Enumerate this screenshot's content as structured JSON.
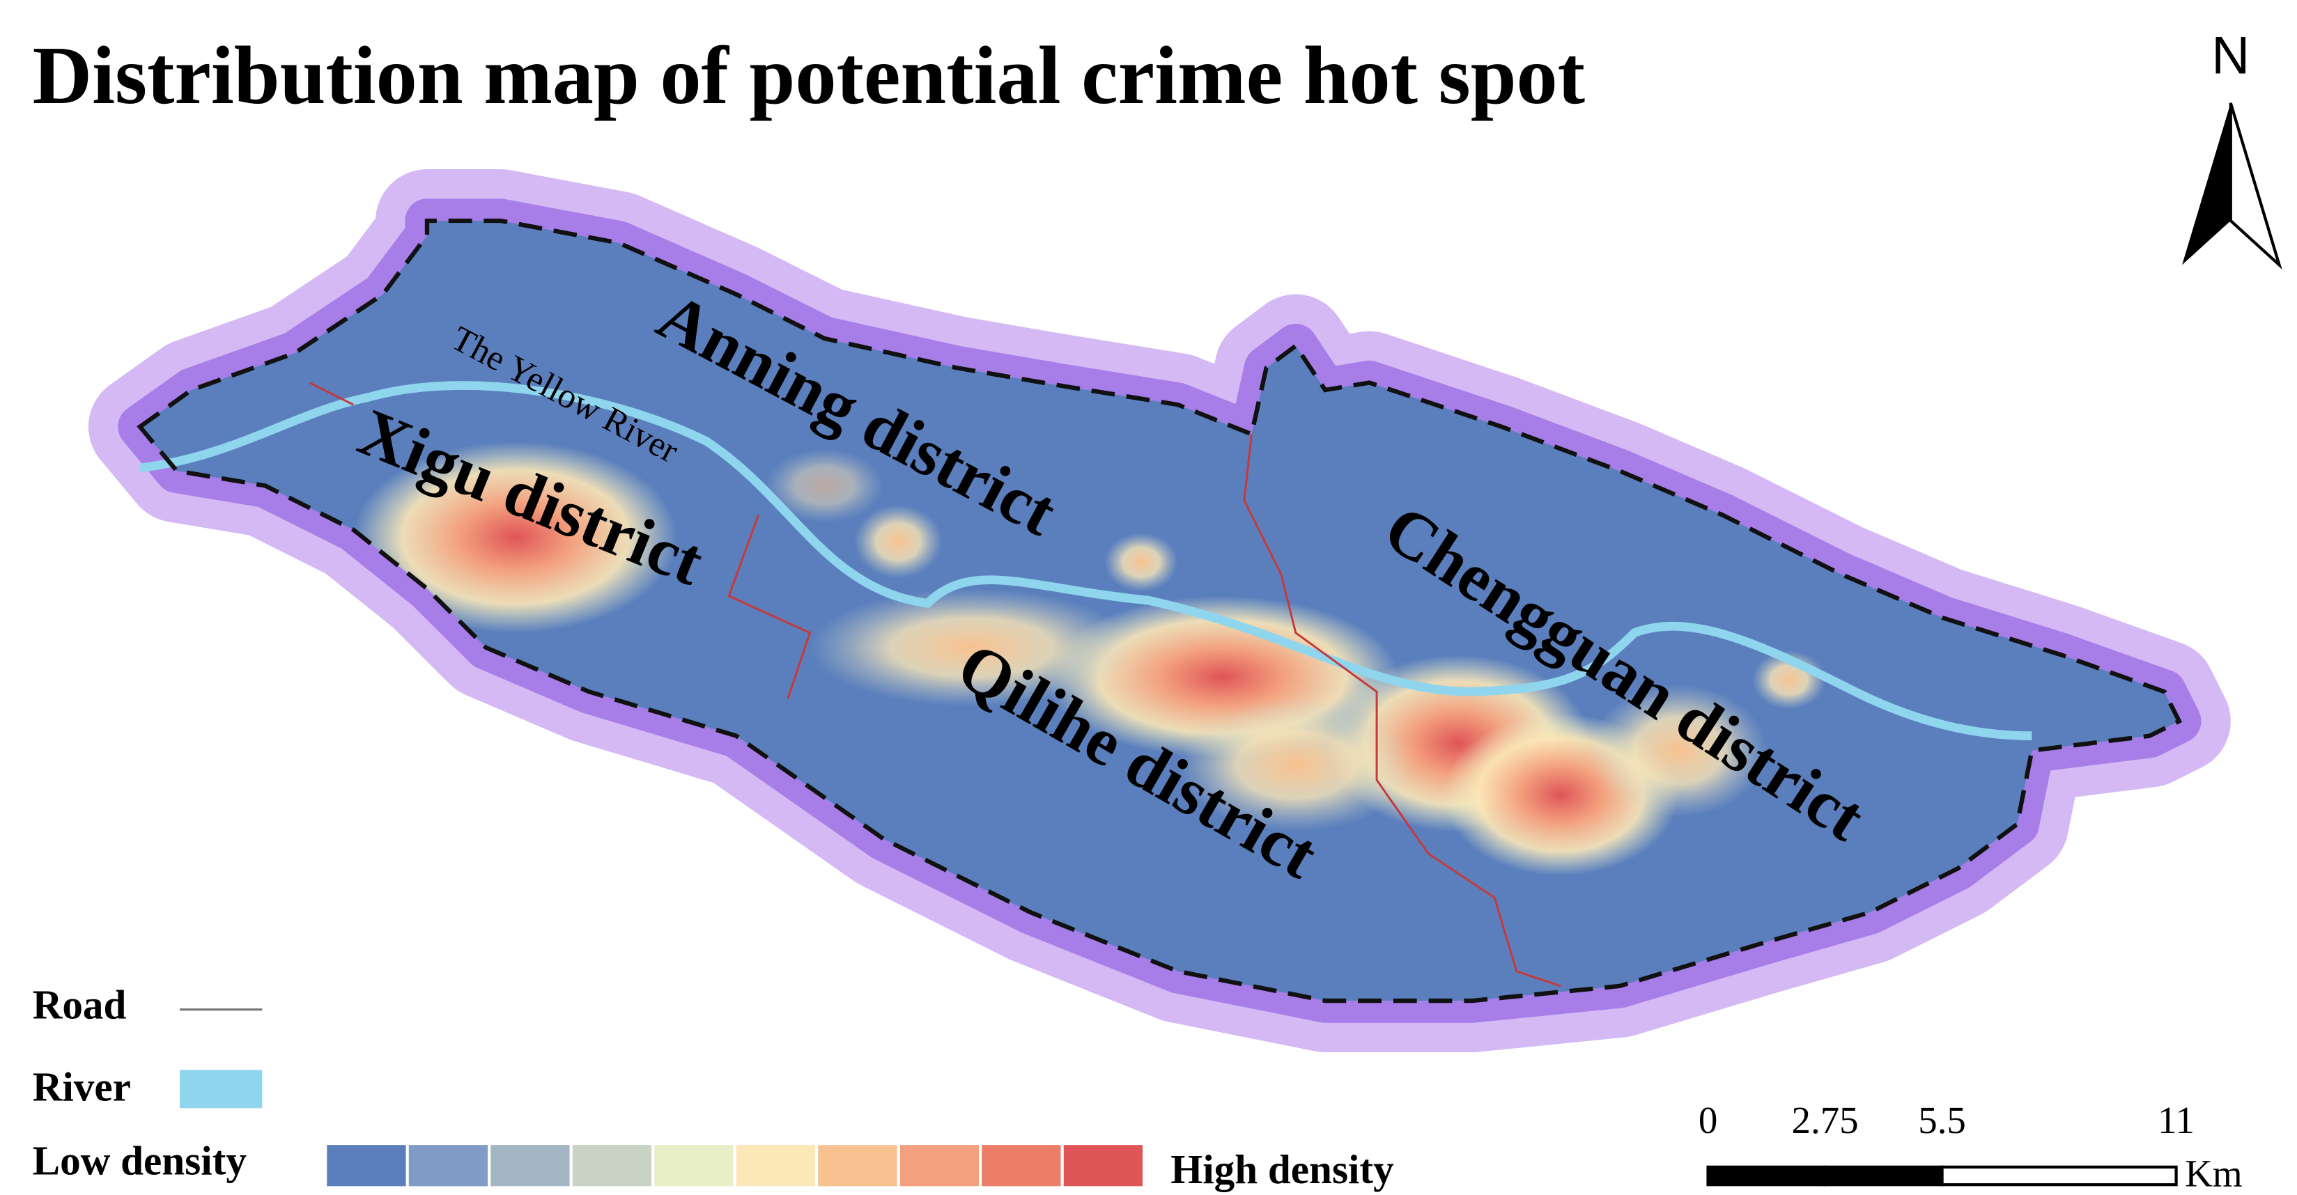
{
  "title": "Distribution map of potential crime hot spot",
  "north_label": "N",
  "labels": {
    "river": "The Yellow River",
    "districts": [
      "Anning  district",
      "Xigu district",
      "Qilihe  district",
      "Chengguan district"
    ]
  },
  "legend": {
    "road": "Road",
    "river": "River",
    "low": "Low density",
    "high": "High density",
    "ramp_colors": [
      "#5b7fbd",
      "#809cc6",
      "#a4b5c5",
      "#c8d3c5",
      "#e8efc7",
      "#fce7b7",
      "#f8c190",
      "#f3a07e",
      "#eb7d69",
      "#df5558"
    ]
  },
  "scale_bar": {
    "ticks": [
      0,
      2.75,
      5.5,
      11
    ],
    "unit": "Km"
  }
}
